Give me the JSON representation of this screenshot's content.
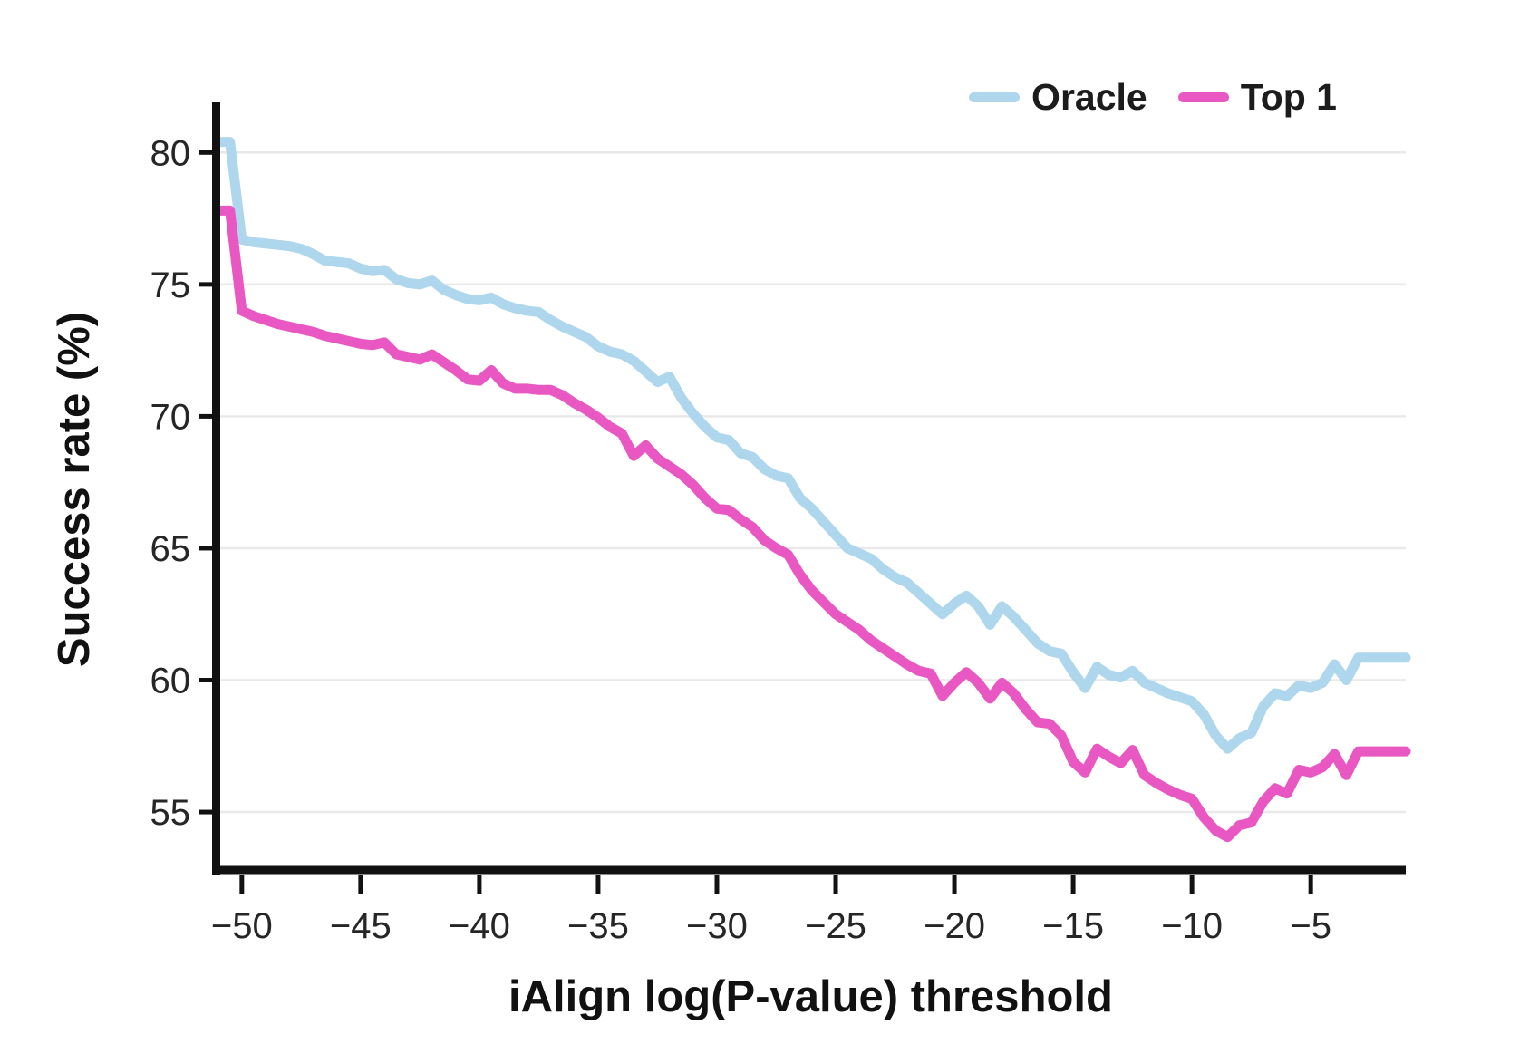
{
  "figure": {
    "background": "#ffffff"
  },
  "axes": {
    "x_title": "iAlign log(P-value) threshold",
    "y_title": "Success rate (%)"
  },
  "chart_data": {
    "type": "line",
    "title": "",
    "xlabel": "iAlign log(P-value) threshold",
    "ylabel": "Success rate (%)",
    "xlim": [
      -51.1,
      -1.0
    ],
    "ylim": [
      52.7,
      81.9
    ],
    "xticks": [
      -50,
      -45,
      -40,
      -35,
      -30,
      -25,
      -20,
      -15,
      -10,
      -5
    ],
    "yticks": [
      55,
      60,
      65,
      70,
      75,
      80
    ],
    "grid": "horizontal",
    "legend_position": "top-right",
    "style": {
      "axis_color": "#111111",
      "grid_color": "#e9e9e9",
      "tick_label_color": "#262626",
      "line_width": 11,
      "spine_width": 9
    },
    "x": [
      -51,
      -50.5,
      -50,
      -49.5,
      -49,
      -48.5,
      -48,
      -47.5,
      -47,
      -46.5,
      -46,
      -45.5,
      -45,
      -44.5,
      -44,
      -43.5,
      -43,
      -42.5,
      -42,
      -41.5,
      -41,
      -40.5,
      -40,
      -39.5,
      -39,
      -38.5,
      -38,
      -37.5,
      -37,
      -36.5,
      -36,
      -35.5,
      -35,
      -34.5,
      -34,
      -33.5,
      -33,
      -32.5,
      -32,
      -31.5,
      -31,
      -30.5,
      -30,
      -29.5,
      -29,
      -28.5,
      -28,
      -27.5,
      -27,
      -26.5,
      -26,
      -25.5,
      -25,
      -24.5,
      -24,
      -23.5,
      -23,
      -22.5,
      -22,
      -21.5,
      -21,
      -20.5,
      -20,
      -19.5,
      -19,
      -18.5,
      -18,
      -17.5,
      -17,
      -16.5,
      -16,
      -15.5,
      -15,
      -14.5,
      -14,
      -13.5,
      -13,
      -12.5,
      -12,
      -11.5,
      -11,
      -10.5,
      -10,
      -9.5,
      -9,
      -8.5,
      -8,
      -7.5,
      -7,
      -6.5,
      -6,
      -5.5,
      -5,
      -4.5,
      -4,
      -3.5,
      -3,
      -2.5,
      -2,
      -1.5,
      -1
    ],
    "series": [
      {
        "name": "Oracle",
        "color": "#aed7ee",
        "values": [
          80.4,
          80.4,
          76.7,
          76.6,
          76.55,
          76.5,
          76.45,
          76.35,
          76.15,
          75.9,
          75.85,
          75.8,
          75.6,
          75.5,
          75.55,
          75.2,
          75.05,
          75.0,
          75.15,
          74.8,
          74.6,
          74.45,
          74.4,
          74.5,
          74.25,
          74.1,
          74.0,
          73.95,
          73.65,
          73.4,
          73.2,
          73.0,
          72.65,
          72.45,
          72.35,
          72.1,
          71.7,
          71.3,
          71.5,
          70.7,
          70.1,
          69.6,
          69.2,
          69.1,
          68.6,
          68.45,
          68.0,
          67.75,
          67.65,
          66.9,
          66.5,
          66.0,
          65.5,
          65.0,
          64.8,
          64.6,
          64.2,
          63.9,
          63.7,
          63.3,
          62.9,
          62.5,
          62.9,
          63.2,
          62.8,
          62.1,
          62.8,
          62.4,
          61.9,
          61.4,
          61.1,
          61.0,
          60.3,
          59.7,
          60.5,
          60.2,
          60.1,
          60.35,
          59.9,
          59.7,
          59.5,
          59.35,
          59.2,
          58.7,
          57.9,
          57.4,
          57.8,
          58.0,
          59.0,
          59.5,
          59.4,
          59.8,
          59.7,
          59.9,
          60.6,
          60.0,
          60.85,
          60.85,
          60.85,
          60.85,
          60.85
        ]
      },
      {
        "name": "Top 1",
        "color": "#e958c2",
        "values": [
          77.8,
          77.8,
          74.0,
          73.8,
          73.65,
          73.5,
          73.4,
          73.3,
          73.2,
          73.05,
          72.95,
          72.85,
          72.75,
          72.7,
          72.8,
          72.35,
          72.25,
          72.15,
          72.35,
          72.05,
          71.75,
          71.4,
          71.35,
          71.75,
          71.25,
          71.05,
          71.05,
          71.0,
          71.0,
          70.8,
          70.5,
          70.25,
          69.95,
          69.6,
          69.35,
          68.5,
          68.9,
          68.4,
          68.1,
          67.8,
          67.4,
          66.9,
          66.5,
          66.45,
          66.1,
          65.8,
          65.3,
          65.0,
          64.75,
          64.0,
          63.4,
          62.95,
          62.5,
          62.2,
          61.9,
          61.5,
          61.2,
          60.9,
          60.6,
          60.35,
          60.25,
          59.4,
          59.9,
          60.3,
          59.9,
          59.3,
          59.9,
          59.5,
          58.9,
          58.4,
          58.35,
          57.9,
          56.9,
          56.5,
          57.4,
          57.1,
          56.85,
          57.35,
          56.4,
          56.1,
          55.85,
          55.65,
          55.5,
          54.8,
          54.3,
          54.05,
          54.5,
          54.6,
          55.4,
          55.9,
          55.7,
          56.6,
          56.5,
          56.7,
          57.2,
          56.4,
          57.3,
          57.3,
          57.3,
          57.3,
          57.3
        ]
      }
    ]
  }
}
